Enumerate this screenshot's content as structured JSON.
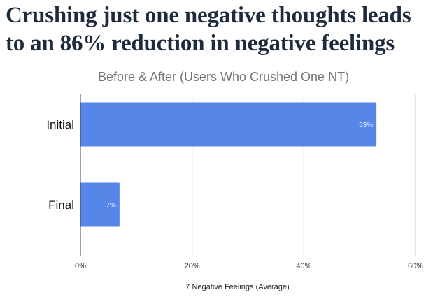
{
  "headline": {
    "line1": "Crushing just one negative thoughts leads",
    "line2": "to an 86% reduction in negative feelings"
  },
  "chart_data": {
    "type": "bar",
    "orientation": "horizontal",
    "title": "Before & After (Users Who Crushed One NT)",
    "xlabel": "7 Negative Feelings (Average)",
    "ylabel": "",
    "categories": [
      "Initial",
      "Final"
    ],
    "values": [
      53,
      7
    ],
    "data_labels": [
      "53%",
      "7%"
    ],
    "xlim": [
      0,
      60
    ],
    "xticks": [
      0,
      20,
      40,
      60
    ],
    "xtick_labels": [
      "0%",
      "20%",
      "40%",
      "60%"
    ],
    "grid": true,
    "legend": "none",
    "bar_color": "#5686e8"
  }
}
